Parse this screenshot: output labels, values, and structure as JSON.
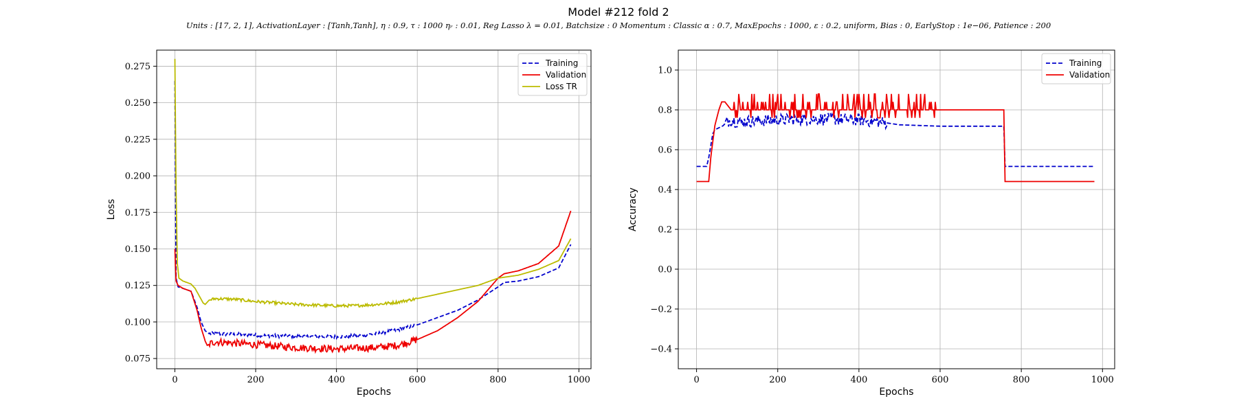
{
  "figure": {
    "title": "Model #212 fold 2",
    "subtitle": "Units : [17, 2, 1], ActivationLayer : [Tanh,Tanh], η : 0.9, τ : 1000 ηᵣ : 0.01, Reg Lasso λ = 0.01, Batchsize : 0 Momentum : Classic α : 0.7, MaxEpochs : 1000, ε : 0.2, uniform, Bias : 0, EarlyStop : 1e−06, Patience : 200"
  },
  "chart_data": [
    {
      "type": "line",
      "title": "",
      "xlabel": "Epochs",
      "ylabel": "Loss",
      "xlim": [
        -45,
        1030
      ],
      "ylim": [
        0.068,
        0.286
      ],
      "xticks": [
        0,
        200,
        400,
        600,
        800,
        1000
      ],
      "xtick_labels": [
        "0",
        "200",
        "400",
        "600",
        "800",
        "1000"
      ],
      "yticks": [
        0.075,
        0.1,
        0.125,
        0.15,
        0.175,
        0.2,
        0.225,
        0.25,
        0.275
      ],
      "ytick_labels": [
        "0.075",
        "0.100",
        "0.125",
        "0.150",
        "0.175",
        "0.200",
        "0.225",
        "0.250",
        "0.275"
      ],
      "grid": true,
      "legend_position": "top-right",
      "series": [
        {
          "name": "Training",
          "color": "#0000cc",
          "style": "dashed",
          "x": [
            0,
            3,
            8,
            20,
            40,
            55,
            65,
            75,
            85,
            100,
            150,
            200,
            250,
            300,
            350,
            400,
            450,
            500,
            550,
            600,
            650,
            700,
            750,
            800,
            815,
            850,
            900,
            950,
            980
          ],
          "y": [
            0.265,
            0.13,
            0.124,
            0.123,
            0.121,
            0.11,
            0.1,
            0.094,
            0.092,
            0.092,
            0.0915,
            0.091,
            0.0905,
            0.0902,
            0.09,
            0.0898,
            0.0905,
            0.092,
            0.0945,
            0.098,
            0.103,
            0.108,
            0.115,
            0.124,
            0.127,
            0.128,
            0.131,
            0.137,
            0.153
          ]
        },
        {
          "name": "Validation",
          "color": "#ee0000",
          "style": "solid",
          "x": [
            0,
            3,
            8,
            20,
            40,
            55,
            65,
            75,
            80,
            90,
            100,
            150,
            200,
            250,
            300,
            350,
            400,
            450,
            500,
            550,
            600,
            650,
            700,
            750,
            800,
            815,
            850,
            900,
            950,
            980
          ],
          "y": [
            0.15,
            0.128,
            0.125,
            0.123,
            0.121,
            0.108,
            0.096,
            0.087,
            0.084,
            0.0855,
            0.0865,
            0.0855,
            0.0845,
            0.0835,
            0.0825,
            0.082,
            0.0815,
            0.082,
            0.0825,
            0.084,
            0.088,
            0.094,
            0.103,
            0.114,
            0.13,
            0.133,
            0.135,
            0.14,
            0.152,
            0.176
          ]
        },
        {
          "name": "Loss TR",
          "color": "#bbbb00",
          "style": "solid",
          "x": [
            0,
            3,
            6,
            10,
            20,
            30,
            40,
            50,
            60,
            70,
            75,
            85,
            100,
            150,
            200,
            250,
            300,
            350,
            400,
            450,
            500,
            550,
            600,
            650,
            700,
            750,
            800,
            850,
            900,
            950,
            980
          ],
          "y": [
            0.28,
            0.19,
            0.14,
            0.13,
            0.128,
            0.127,
            0.126,
            0.123,
            0.118,
            0.113,
            0.112,
            0.115,
            0.116,
            0.1155,
            0.114,
            0.113,
            0.112,
            0.1115,
            0.111,
            0.1112,
            0.112,
            0.1135,
            0.116,
            0.119,
            0.122,
            0.125,
            0.13,
            0.132,
            0.136,
            0.142,
            0.157
          ]
        }
      ]
    },
    {
      "type": "line",
      "title": "",
      "xlabel": "Epochs",
      "ylabel": "Accuracy",
      "xlim": [
        -45,
        1030
      ],
      "ylim": [
        -0.5,
        1.1
      ],
      "xticks": [
        0,
        200,
        400,
        600,
        800,
        1000
      ],
      "xtick_labels": [
        "0",
        "200",
        "400",
        "600",
        "800",
        "1000"
      ],
      "yticks": [
        -0.4,
        -0.2,
        0.0,
        0.2,
        0.4,
        0.6,
        0.8,
        1.0
      ],
      "ytick_labels": [
        "−0.4",
        "−0.2",
        "0.0",
        "0.2",
        "0.4",
        "0.6",
        "0.8",
        "1.0"
      ],
      "grid": true,
      "legend_position": "top-right",
      "series": [
        {
          "name": "Training",
          "color": "#0000cc",
          "style": "dashed",
          "x": [
            0,
            25,
            30,
            35,
            40,
            45,
            55,
            65,
            75,
            85,
            100,
            200,
            300,
            400,
            450,
            500,
            600,
            700,
            757,
            760,
            980
          ],
          "y": [
            0.516,
            0.516,
            0.56,
            0.62,
            0.68,
            0.7,
            0.71,
            0.72,
            0.74,
            0.75,
            0.74,
            0.75,
            0.755,
            0.75,
            0.74,
            0.725,
            0.718,
            0.718,
            0.718,
            0.516,
            0.516
          ]
        },
        {
          "name": "Validation",
          "color": "#ee0000",
          "style": "solid",
          "x": [
            0,
            30,
            35,
            40,
            45,
            50,
            55,
            62,
            70,
            85,
            100,
            200,
            300,
            400,
            500,
            600,
            700,
            757,
            760,
            980
          ],
          "y": [
            0.44,
            0.44,
            0.56,
            0.64,
            0.72,
            0.76,
            0.8,
            0.84,
            0.84,
            0.8,
            0.8,
            0.8,
            0.8,
            0.8,
            0.8,
            0.8,
            0.8,
            0.8,
            0.44,
            0.44
          ]
        }
      ]
    }
  ]
}
